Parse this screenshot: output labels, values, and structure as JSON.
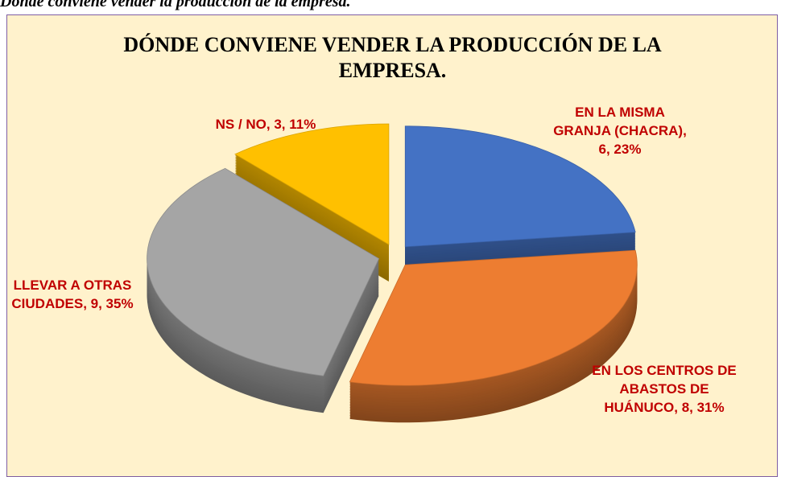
{
  "caption": "Dónde conviene vender la producción de la empresa.",
  "chart_data": {
    "type": "pie3d",
    "title": "DÓNDE CONVIENE VENDER LA PRODUCCIÓN DE LA EMPRESA.",
    "categories": [
      "EN LA MISMA GRANJA (CHACRA)",
      "EN LOS CENTROS DE ABASTOS DE HUÁNUCO",
      "LLEVAR A OTRAS CIUDADES",
      "NS / NO"
    ],
    "values": [
      6,
      8,
      9,
      3
    ],
    "value_labels": [
      "EN LA MISMA GRANJA (CHACRA), 6, 23%",
      "EN LOS CENTROS DE ABASTOS DE HUÁNUCO, 8, 31%",
      "LLEVAR A OTRAS CIUDADES, 9, 35%",
      "NS / NO, 3, 11%"
    ],
    "colors": [
      "#4472c4",
      "#ed7d31",
      "#a5a5a5",
      "#ffc000"
    ]
  }
}
